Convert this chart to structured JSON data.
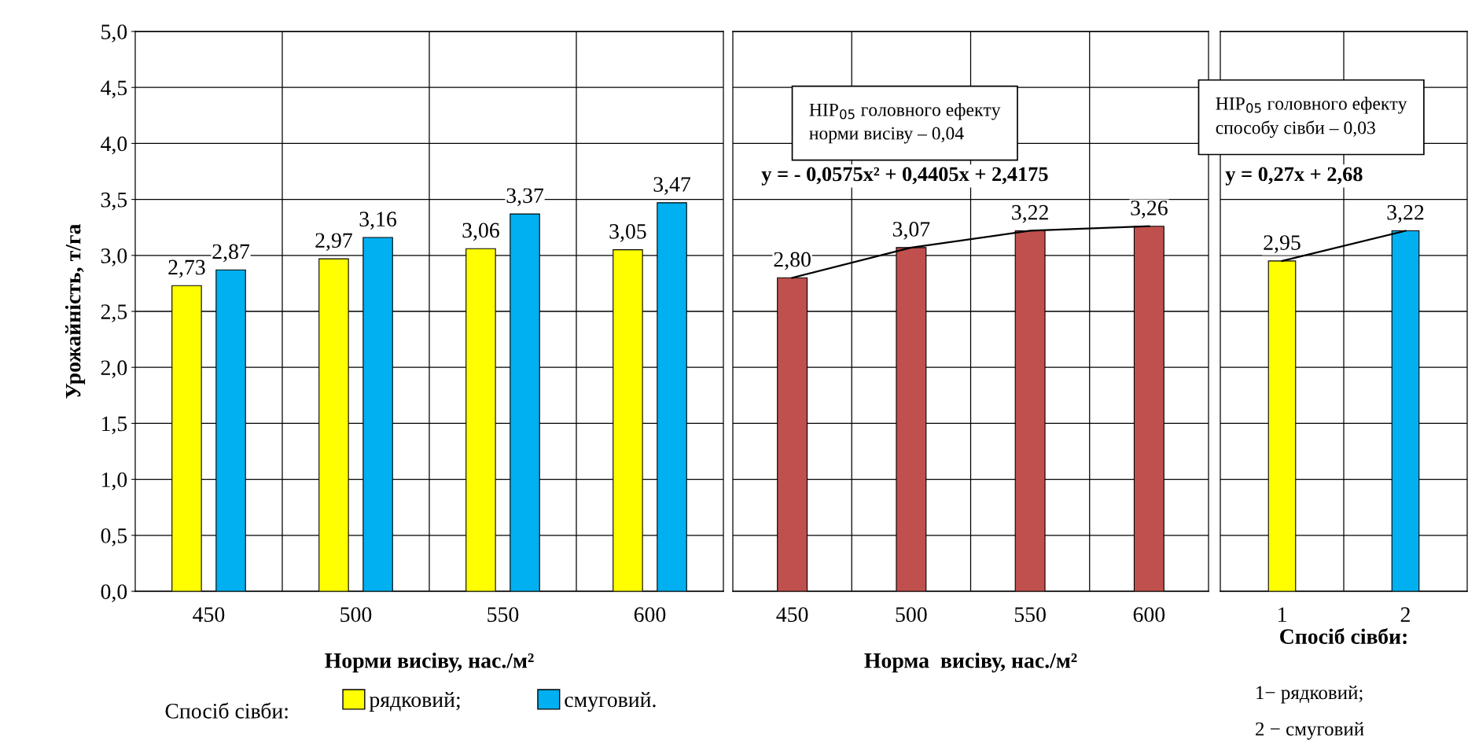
{
  "chart_data": [
    {
      "type": "bar",
      "categories": [
        "450",
        "500",
        "550",
        "600"
      ],
      "xlabel": "Норми висіву, нас./м²",
      "ylabel": "Урожайність, т/га",
      "legend_title": "Спосіб сівби:",
      "legend": "bottom",
      "grid": true,
      "ylim": [
        0,
        5
      ],
      "yticks": [
        {
          "value": 0,
          "label": "0,0"
        },
        {
          "value": 0.5,
          "label": "0,5"
        },
        {
          "value": 1,
          "label": "1,0"
        },
        {
          "value": 1.5,
          "label": "1,5"
        },
        {
          "value": 2,
          "label": "2,0"
        },
        {
          "value": 2.5,
          "label": "2,5"
        },
        {
          "value": 3,
          "label": "3,0"
        },
        {
          "value": 3.5,
          "label": "3,5"
        },
        {
          "value": 4,
          "label": "4,0"
        },
        {
          "value": 4.5,
          "label": "4,5"
        },
        {
          "value": 5,
          "label": "5,0"
        }
      ],
      "series": [
        {
          "name": "рядковий;",
          "color": "#ffff00",
          "values": [
            2.73,
            2.97,
            3.06,
            3.05
          ],
          "value_labels": [
            "2,73",
            "2,97",
            "3,06",
            "3,05"
          ]
        },
        {
          "name": "смуговий.",
          "color": "#00b0f0",
          "values": [
            2.87,
            3.16,
            3.37,
            3.47
          ],
          "value_labels": [
            "2,87",
            "3,16",
            "3,37",
            "3,47"
          ]
        }
      ]
    },
    {
      "type": "bar",
      "categories": [
        "450",
        "500",
        "550",
        "600"
      ],
      "xlabel": "Норма  висіву, нас./м²",
      "grid": true,
      "tick_labels": "x",
      "ylim": [
        0,
        5
      ],
      "yticks": [
        0,
        0.5,
        1,
        1.5,
        2,
        2.5,
        3,
        3.5,
        4,
        4.5,
        5
      ],
      "annotations": [
        "НІР$_{05}$ головного ефекту\nнорми висіву – 0,04",
        "y = - 0,0575x² + 0,4405x + 2,4175"
      ],
      "series": [
        {
          "color": "#c0504d",
          "values": [
            2.8,
            3.07,
            3.22,
            3.26
          ],
          "value_labels": [
            "2,80",
            "3,07",
            "3,22",
            "3,26"
          ]
        },
        {
          "type": "line",
          "color": "#000000",
          "values": [
            2.8,
            3.07,
            3.22,
            3.26
          ]
        }
      ]
    },
    {
      "type": "bar",
      "categories": [
        "1",
        "2"
      ],
      "xlabel": "Спосіб сівби:",
      "grid": true,
      "tick_labels": "x",
      "ylim": [
        0,
        5
      ],
      "yticks": [
        0,
        0.5,
        1,
        1.5,
        2,
        2.5,
        3,
        3.5,
        4,
        4.5,
        5
      ],
      "annotations": [
        "НІР$_{05}$ головного ефекту\nспособу сівби – 0,03",
        "y = 0,27x + 2,68",
        "1− рядковий;",
        "2 − смуговий"
      ],
      "series": [
        {
          "colors": [
            "#ffff00",
            "#00b0f0"
          ],
          "values": [
            2.95,
            3.22
          ],
          "value_labels": [
            "2,95",
            "3,22"
          ]
        },
        {
          "type": "line",
          "color": "#000000",
          "values": [
            2.95,
            3.22
          ]
        }
      ]
    }
  ]
}
